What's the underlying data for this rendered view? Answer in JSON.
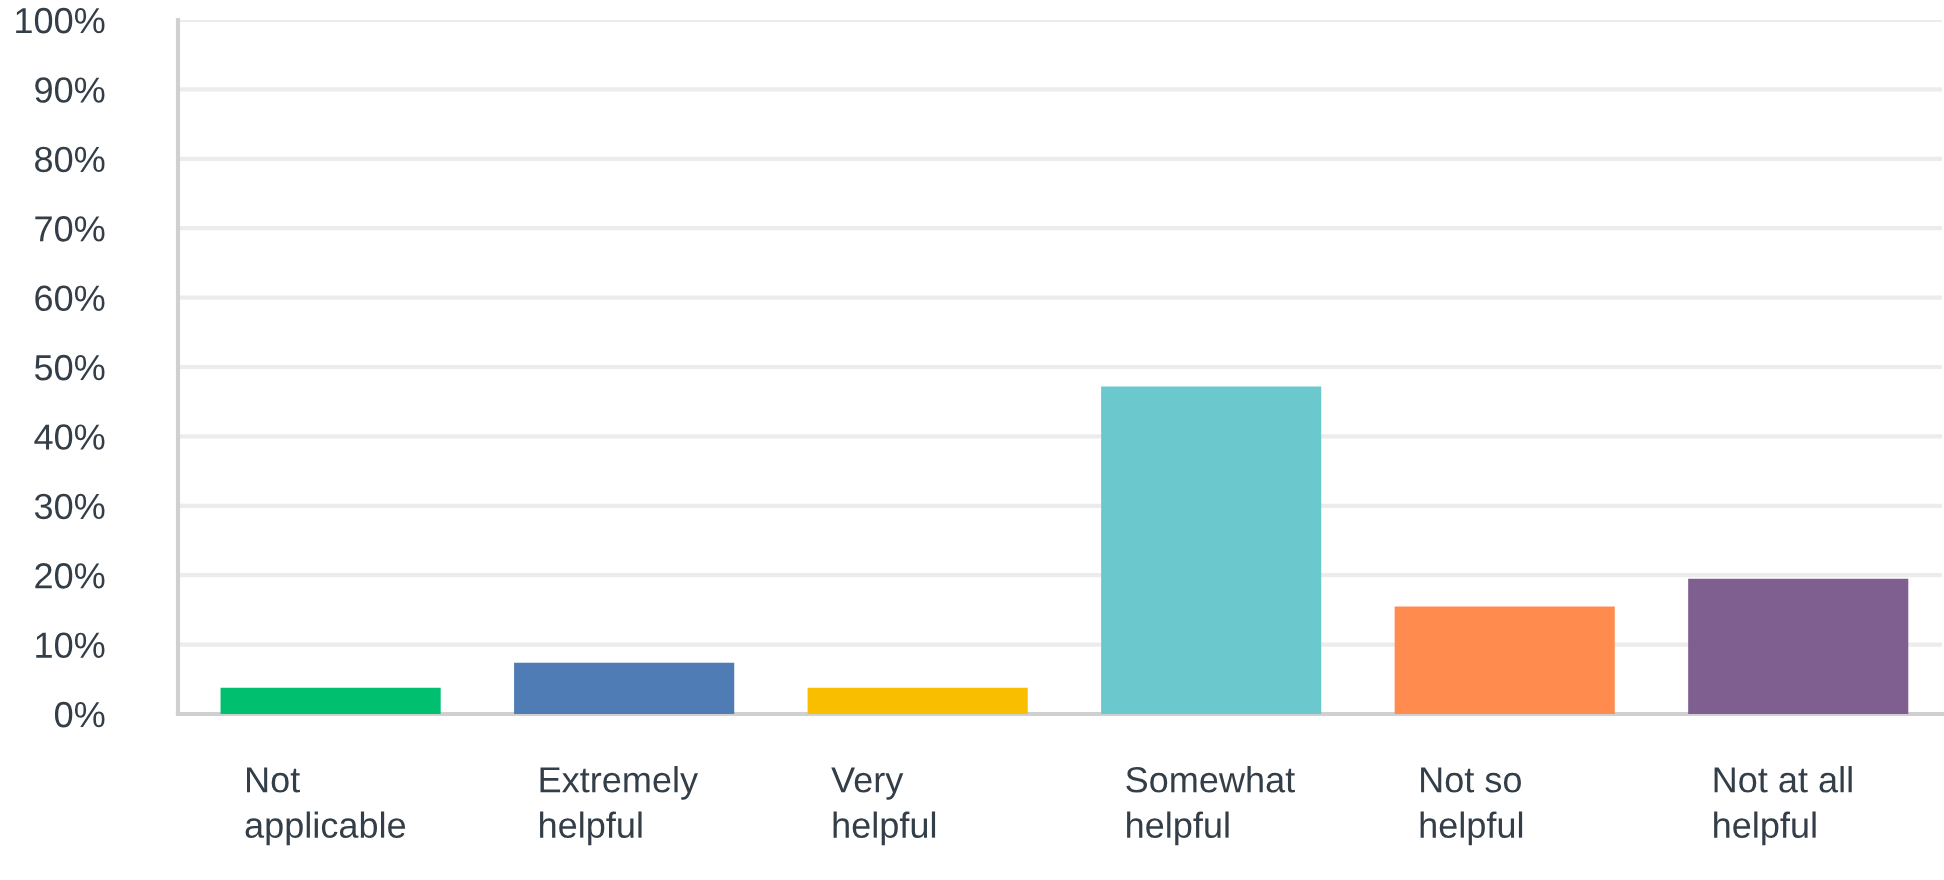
{
  "chart_data": {
    "type": "bar",
    "categories": [
      "Not applicable",
      "Extremely helpful",
      "Very helpful",
      "Somewhat helpful",
      "Not so helpful",
      "Not at all helpful"
    ],
    "values": [
      3.8,
      7.4,
      3.8,
      47.2,
      15.5,
      19.5
    ],
    "colors": [
      "#00bf6f",
      "#507cb6",
      "#f9be00",
      "#6bc8cd",
      "#ff8b4f",
      "#7f5f90"
    ],
    "ylim": [
      0,
      100
    ],
    "yticks": [
      {
        "value": 0,
        "label": "0%"
      },
      {
        "value": 10,
        "label": "10%"
      },
      {
        "value": 20,
        "label": "20%"
      },
      {
        "value": 30,
        "label": "30%"
      },
      {
        "value": 40,
        "label": "40%"
      },
      {
        "value": 50,
        "label": "50%"
      },
      {
        "value": 60,
        "label": "60%"
      },
      {
        "value": 70,
        "label": "70%"
      },
      {
        "value": 80,
        "label": "80%"
      },
      {
        "value": 90,
        "label": "90%"
      },
      {
        "value": 100,
        "label": "100%"
      }
    ],
    "grid": "y"
  }
}
